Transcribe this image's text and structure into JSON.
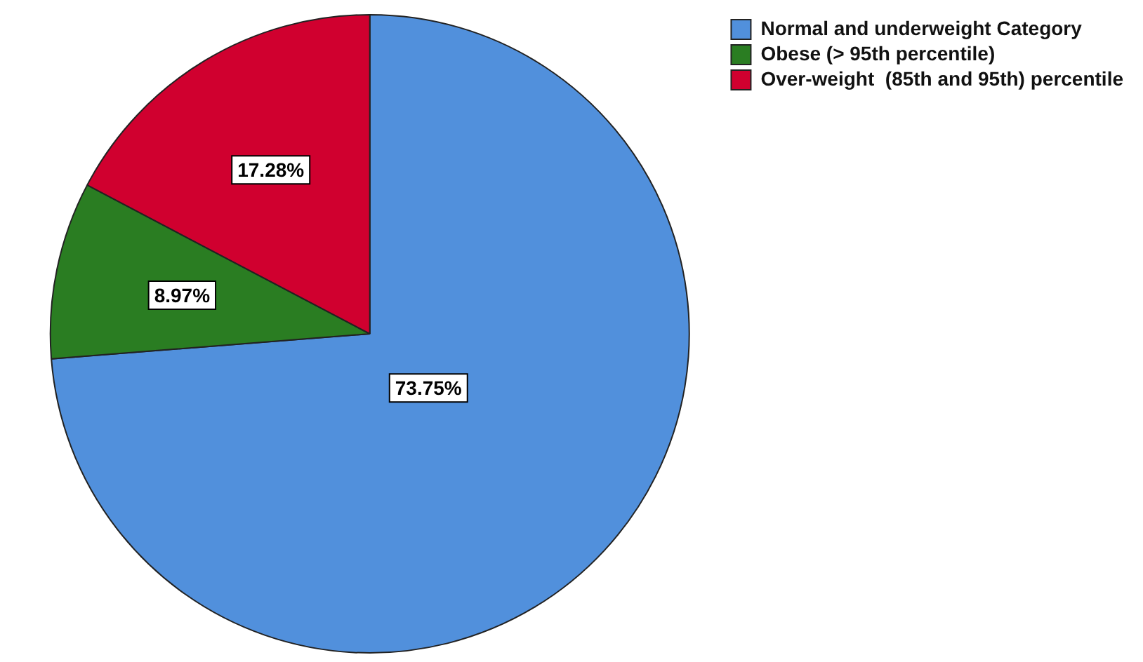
{
  "chart_data": {
    "type": "pie",
    "categories": [
      "Normal and underweight Category",
      "Obese (> 95th percentile)",
      "Over-weight  (85th and 95th) percentile"
    ],
    "values": [
      73.75,
      8.97,
      17.28
    ],
    "colors": [
      "#5190dc",
      "#2a7d22",
      "#d0002f"
    ],
    "value_labels": [
      "73.75%",
      "8.97%",
      "17.28%"
    ],
    "legend": "top right"
  }
}
